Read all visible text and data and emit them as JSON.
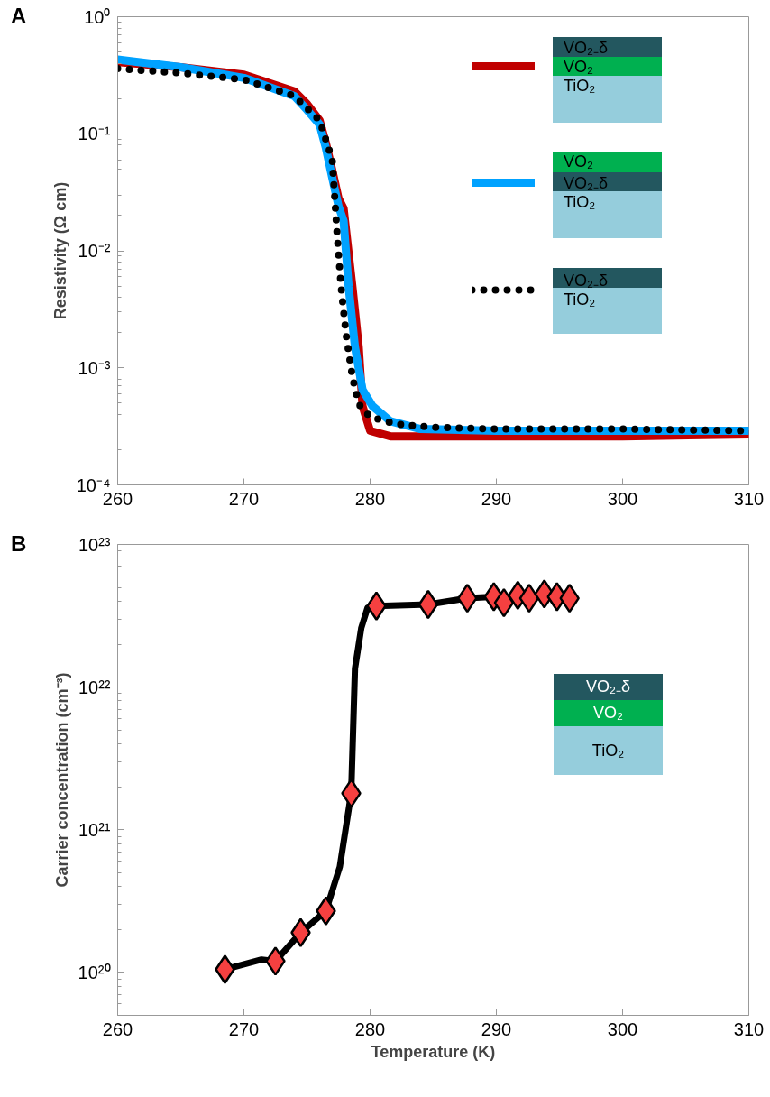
{
  "chart_data": [
    {
      "type": "line",
      "title": "A",
      "ylabel": "Resistivity (Ω cm)",
      "log": "y",
      "legend": "top right",
      "grid": false,
      "line_style": "solid",
      "xlim": [
        260,
        310
      ],
      "xticks": [
        260,
        270,
        280,
        290,
        300,
        310
      ],
      "ylim": [
        0.0001,
        1
      ],
      "yticks": [
        {
          "value": 0.0001,
          "label": "10⁻⁴"
        },
        {
          "value": 0.001,
          "label": "10⁻³"
        },
        {
          "value": 0.01,
          "label": "10⁻²"
        },
        {
          "value": 0.1,
          "label": "10⁻¹"
        },
        {
          "value": 1,
          "label": "10⁰"
        }
      ],
      "series": [
        {
          "name": "VO₂₋δ\nVO₂\nTiO₂",
          "color": "#c00000",
          "x": [
            260,
            265,
            270,
            274,
            275,
            276,
            276.5,
            277,
            277.5,
            277.9,
            278.6,
            279.1,
            279.4,
            280,
            281.6,
            285,
            290,
            300,
            310
          ],
          "values": [
            0.41,
            0.37,
            0.32,
            0.23,
            0.18,
            0.13,
            0.083,
            0.049,
            0.028,
            0.023,
            0.0049,
            0.0015,
            0.00047,
            0.00029,
            0.00026,
            0.00026,
            0.00026,
            0.00026,
            0.00027
          ]
        },
        {
          "name": "VO₂\nVO₂₋δ\nTiO₂",
          "color": "#00a2ff",
          "x": [
            260,
            265,
            270,
            274,
            275,
            276,
            276.5,
            277,
            277.5,
            277.9,
            278.3,
            278.8,
            279.4,
            280.2,
            281.6,
            284,
            290,
            300,
            310
          ],
          "values": [
            0.43,
            0.37,
            0.3,
            0.21,
            0.16,
            0.12,
            0.075,
            0.042,
            0.024,
            0.018,
            0.0049,
            0.0015,
            0.00065,
            0.00047,
            0.00035,
            0.0003,
            0.00029,
            0.00029,
            0.00029
          ]
        },
        {
          "name": "VO₂₋δ\nTiO₂",
          "color": "#000000",
          "line_style": "dotted",
          "x": [
            260,
            265,
            270,
            274,
            276,
            277,
            277.4,
            277.7,
            278.1,
            278.6,
            279.1,
            280,
            282.1,
            285.2,
            290,
            300,
            310
          ],
          "values": [
            0.36,
            0.33,
            0.29,
            0.21,
            0.13,
            0.06,
            0.013,
            0.0049,
            0.0019,
            0.00083,
            0.00049,
            0.00038,
            0.00033,
            0.00031,
            0.0003,
            0.0003,
            0.00029
          ]
        }
      ]
    },
    {
      "type": "scatter",
      "title": "B",
      "xlabel": "Temperature (K)",
      "ylabel": "Carrier concentration (cm⁻³)",
      "log": "y",
      "grid": false,
      "xlim": [
        260,
        310
      ],
      "xticks": [
        260,
        270,
        280,
        290,
        300,
        310
      ],
      "ylim": [
        5e+19,
        1e+23
      ],
      "yticks": [
        {
          "value": 1e+20,
          "label": "10²⁰"
        },
        {
          "value": 1e+21,
          "label": "10²¹"
        },
        {
          "value": 1e+22,
          "label": "10²²"
        },
        {
          "value": 1e+23,
          "label": "10²³"
        }
      ],
      "annotations": [
        "VO₂₋δ",
        "VO₂",
        "TiO₂"
      ],
      "series": [
        {
          "type": "line",
          "color": "#000000",
          "x": [
            268.5,
            271.4,
            272.5,
            274.5,
            276.5,
            277.6,
            278.5,
            278.8,
            279.3,
            279.8,
            280.5,
            284.6,
            287.7,
            289.8
          ],
          "values": [
            1.05e+20,
            1.23e+20,
            1.2e+20,
            1.9e+20,
            2.7e+20,
            5.5e+20,
            1.8e+21,
            1.35e+22,
            2.6e+22,
            3.6e+22,
            3.7e+22,
            3.8e+22,
            4.2e+22,
            4.3e+22
          ]
        },
        {
          "color": "#f54040",
          "marker": "diamond",
          "x": [
            268.5,
            272.5,
            274.5,
            276.5,
            278.5,
            280.5,
            284.6,
            287.7,
            289.8,
            290.6,
            291.7,
            292.6,
            293.8,
            294.8,
            295.8
          ],
          "values": [
            1.05e+20,
            1.2e+20,
            1.9e+20,
            2.7e+20,
            1.8e+21,
            3.7e+22,
            3.8e+22,
            4.2e+22,
            4.3e+22,
            3.9e+22,
            4.4e+22,
            4.2e+22,
            4.5e+22,
            4.3e+22,
            4.2e+22
          ]
        }
      ]
    }
  ]
}
